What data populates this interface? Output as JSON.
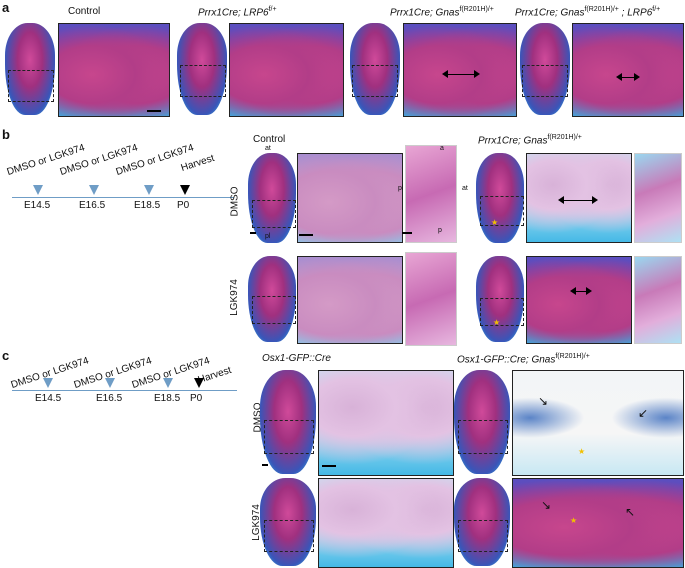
{
  "panels": {
    "a": "a",
    "b": "b",
    "c": "c"
  },
  "row_a": {
    "headers": [
      {
        "text": "Control",
        "italic": false,
        "sup": ""
      },
      {
        "text": "Prrx1Cre; LRP6",
        "italic": true,
        "sup": "f/+"
      },
      {
        "text": "Prrx1Cre; Gnas",
        "italic": true,
        "sup": "f(R201H)/+"
      },
      {
        "text": "Prrx1Cre; Gnas",
        "italic": true,
        "sup": "f(R201H)/+",
        "suffix": " ; LRP6",
        "suffix_sup": "f/+"
      }
    ]
  },
  "timeline": {
    "treatment": "DMSO or LGK974",
    "days": [
      "E14.5",
      "E16.5",
      "E18.5",
      "P0"
    ],
    "harvest": "Harvest"
  },
  "row_b": {
    "control_header": "Control",
    "mutant_header": "Prrx1Cre; Gnas",
    "mutant_sup": "f(R201H)/+",
    "row_labels": [
      "DMSO",
      "LGK974"
    ],
    "annotations": {
      "at": "at",
      "pl": "pl",
      "a": "a",
      "p": "p"
    }
  },
  "row_c": {
    "control_header": "Osx1-GFP::Cre",
    "mutant_header": "Osx1-GFP::Cre; Gnas",
    "mutant_sup": "f(R201H)/+",
    "row_labels": [
      "DMSO",
      "LGK974"
    ]
  }
}
